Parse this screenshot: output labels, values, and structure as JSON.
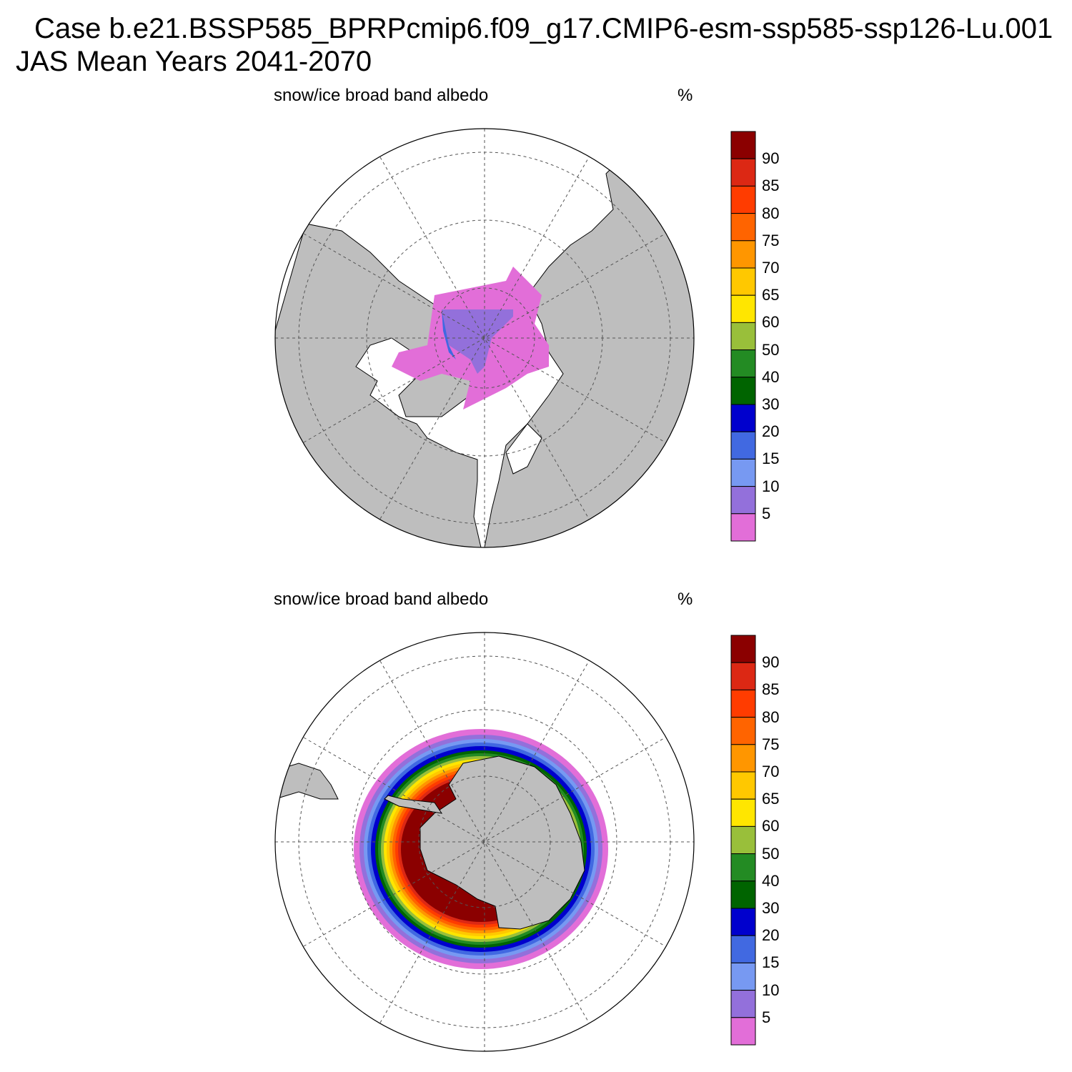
{
  "header": {
    "case_line": "Case b.e21.BSSP585_BPRPcmip6.f09_g17.CMIP6-esm-ssp585-ssp126-Lu.001",
    "period_line": "JAS Mean   Years 2041-2070"
  },
  "panels": [
    {
      "id": "north",
      "variable": "snow/ice broad band albedo",
      "units": "%",
      "hemisphere": "north"
    },
    {
      "id": "south",
      "variable": "snow/ice broad band albedo",
      "units": "%",
      "hemisphere": "south"
    }
  ],
  "colorbar": {
    "levels": [
      "90",
      "85",
      "80",
      "75",
      "70",
      "65",
      "60",
      "50",
      "40",
      "30",
      "20",
      "15",
      "10",
      "5"
    ],
    "colors": [
      "#8b0000",
      "#dc2814",
      "#ff3c00",
      "#ff6400",
      "#ff9600",
      "#ffc800",
      "#ffe600",
      "#99bf3a",
      "#238b23",
      "#006400",
      "#0000cd",
      "#4169e1",
      "#7799f2",
      "#9370db",
      "#e26ed8"
    ]
  },
  "map_colors": {
    "land": "#bebebe",
    "ocean": "#ffffff",
    "grid": "#555555"
  }
}
